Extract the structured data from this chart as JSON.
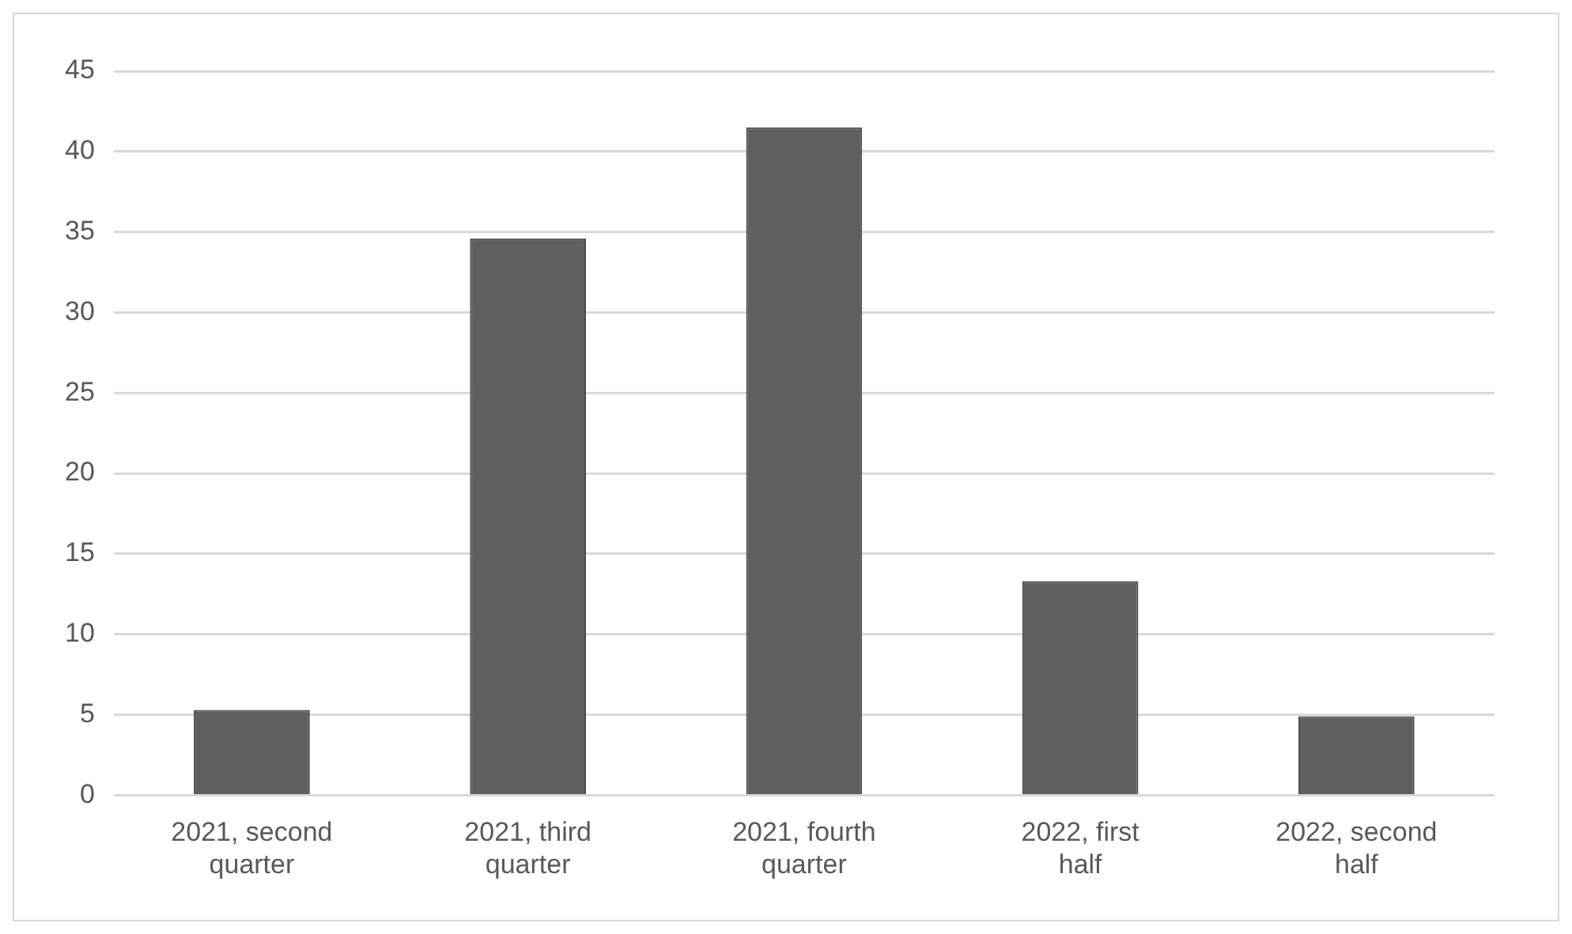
{
  "chart_data": {
    "type": "bar",
    "categories": [
      "2021, second quarter",
      "2021, third quarter",
      "2021, fourth quarter",
      "2022, first half",
      "2022, second half"
    ],
    "values": [
      5.3,
      34.6,
      41.5,
      13.3,
      4.9
    ],
    "color": "#5f5f5f",
    "ylim": [
      0,
      45
    ],
    "yticks": [
      0,
      5,
      10,
      15,
      20,
      25,
      30,
      35,
      40,
      45
    ],
    "grid": "y"
  }
}
